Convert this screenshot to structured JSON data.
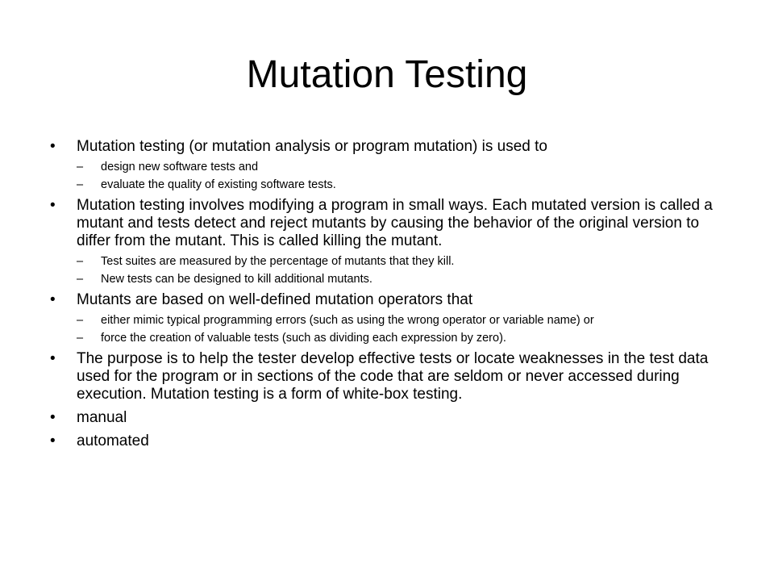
{
  "slide": {
    "title": "Mutation Testing",
    "bullet_glyph": "•",
    "dash_glyph": "–",
    "bullets": [
      {
        "text": "Mutation testing (or mutation analysis or program mutation) is used to",
        "subs": [
          "design new software tests and",
          "evaluate the quality of existing software tests."
        ]
      },
      {
        "text": "Mutation testing involves modifying a program in small ways. Each mutated version is called a mutant and tests detect and reject mutants by causing the behavior of the original version to differ from the mutant. This is called killing the mutant.",
        "subs": [
          "Test suites are measured by the percentage of mutants that they kill.",
          "New tests can be designed to kill additional mutants."
        ]
      },
      {
        "text": "Mutants are based on well-defined mutation operators that",
        "subs": [
          "either mimic typical programming errors (such as using the wrong operator or variable name) or",
          "force the creation of valuable tests (such as dividing each expression by zero)."
        ]
      },
      {
        "text": "The purpose is to help the tester develop effective tests or locate weaknesses in the test data used for the program or in sections of the code that are seldom or never accessed during execution. Mutation testing is a form of white-box testing.",
        "subs": []
      },
      {
        "text": "manual",
        "subs": []
      },
      {
        "text": "automated",
        "subs": []
      }
    ]
  }
}
